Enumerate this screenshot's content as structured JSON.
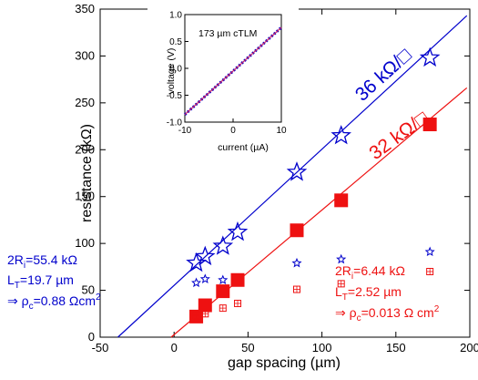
{
  "chart_data": [
    {
      "type": "scatter",
      "title": "",
      "xlabel": "gap spacing (µm)",
      "ylabel": "resistance (kΩ)",
      "xlim": [
        -50,
        200
      ],
      "ylim": [
        0,
        350
      ],
      "x_ticks": [
        -50,
        0,
        50,
        100,
        150,
        200
      ],
      "y_ticks": [
        0,
        50,
        100,
        150,
        200,
        250,
        300,
        350
      ],
      "grid": false,
      "series": [
        {
          "color": "#0000cc",
          "marker": "open-star",
          "x": [
            15,
            21,
            33,
            43,
            83,
            113,
            173
          ],
          "y": [
            79,
            86,
            97,
            112,
            176,
            215,
            298
          ],
          "fit": {
            "x": [
              -38,
              198
            ],
            "y": [
              0,
              343
            ]
          },
          "fit_label": "36 kΩ/□"
        },
        {
          "color": "#0000cc",
          "marker": "small-star",
          "x": [
            15,
            21,
            33,
            43,
            83,
            113,
            173
          ],
          "y": [
            58,
            62,
            61,
            62,
            79,
            83,
            91
          ]
        },
        {
          "color": "#ee1111",
          "marker": "filled-square",
          "x": [
            15,
            21,
            33,
            43,
            83,
            113,
            173
          ],
          "y": [
            22,
            34,
            49,
            61,
            114,
            146,
            227
          ],
          "fit": {
            "x": [
              -2,
              198
            ],
            "y": [
              0,
              266
            ]
          },
          "fit_label": "32 kΩ/□"
        },
        {
          "color": "#ee1111",
          "marker": "small-crossed-square",
          "x": [
            15,
            21,
            33,
            43,
            83,
            113,
            173
          ],
          "y": [
            23,
            25,
            31,
            36,
            51,
            57,
            70
          ]
        }
      ],
      "annotations": {
        "blue": [
          "2R",
          "i",
          "=55.4 kΩ",
          "L",
          "T",
          "=19.7 µm",
          "⇒ ρ",
          "c",
          "=0.88 Ωcm",
          "2"
        ],
        "red": [
          "2R",
          "i",
          "=6.44 kΩ",
          "L",
          "T",
          "=2.52 µm",
          "⇒ ρ",
          "c",
          "=0.013 Ω cm",
          "2"
        ]
      }
    },
    {
      "type": "line",
      "title": "173 µm cTLM",
      "xlabel": "current (µA)",
      "ylabel": "voltage (V)",
      "xlim": [
        -10,
        10
      ],
      "ylim": [
        -1,
        1
      ],
      "x_ticks": [
        -10,
        0,
        10
      ],
      "y_ticks": [
        -1.0,
        -0.5,
        0.0,
        0.5,
        1.0
      ],
      "y_tick_labels": [
        "-1.0",
        "-0.5",
        "0.0",
        "0.5",
        "1.0"
      ],
      "series": [
        {
          "color": "#0000cc",
          "style": "dashed",
          "x": [
            -10,
            10
          ],
          "y": [
            -0.86,
            0.76
          ]
        },
        {
          "color": "#cc2266",
          "style": "solid",
          "x": [
            -10,
            10
          ],
          "y": [
            -0.86,
            0.76
          ]
        }
      ]
    }
  ]
}
